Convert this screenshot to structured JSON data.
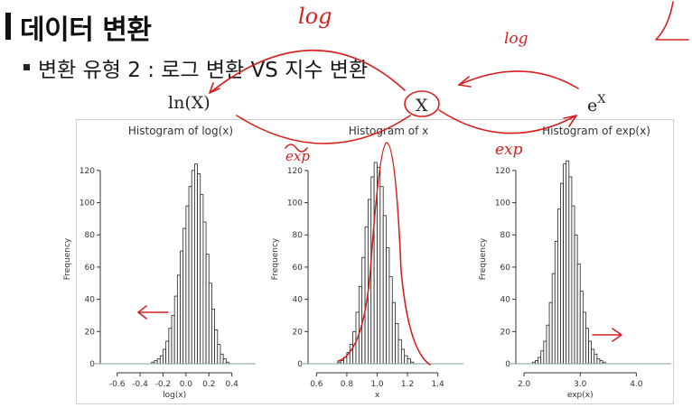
{
  "slide": {
    "title": "데이터 변환",
    "bullet": "변환 유형 2 : 로그 변환 VS 지수 변환"
  },
  "diagram": {
    "left_node": "ln(X)",
    "center_node": "X",
    "right_node_base": "e",
    "right_node_exp": "X"
  },
  "annotations": {
    "top_log": "log",
    "right_log": "log",
    "left_exp": "exp",
    "right_exp": "exp"
  },
  "colors": {
    "ink": "#d62020",
    "bars": "#222222",
    "panel_border": "#cfcfcf"
  },
  "chart_data": [
    {
      "type": "bar",
      "title": "Histogram of log(x)",
      "xlabel": "log(x)",
      "ylabel": "Frequency",
      "xlim": [
        -0.7,
        0.45
      ],
      "ylim": [
        0,
        130
      ],
      "xticks": [
        "-0.6",
        "-0.4",
        "-0.2",
        "0.0",
        "0.2",
        "0.4"
      ],
      "yticks": [
        "0",
        "20",
        "40",
        "60",
        "80",
        "100",
        "120"
      ],
      "bin_start": -0.3,
      "bin_width": 0.025,
      "values": [
        1,
        2,
        3,
        5,
        9,
        14,
        22,
        30,
        42,
        55,
        70,
        84,
        98,
        110,
        120,
        124,
        118,
        105,
        88,
        68,
        50,
        34,
        21,
        12,
        6,
        3,
        1
      ]
    },
    {
      "type": "bar",
      "title": "Histogram of x",
      "xlabel": "x",
      "ylabel": "Frequency",
      "xlim": [
        0.58,
        1.45
      ],
      "ylim": [
        0,
        130
      ],
      "xticks": [
        "0.6",
        "0.8",
        "1.0",
        "1.2",
        "1.4"
      ],
      "yticks": [
        "0",
        "20",
        "40",
        "60",
        "80",
        "100",
        "120"
      ],
      "bin_start": 0.74,
      "bin_width": 0.02,
      "values": [
        1,
        2,
        4,
        7,
        12,
        20,
        32,
        48,
        66,
        85,
        102,
        116,
        125,
        122,
        110,
        92,
        72,
        54,
        38,
        25,
        15,
        9,
        5,
        3,
        1
      ]
    },
    {
      "type": "bar",
      "title": "Histogram of exp(x)",
      "xlabel": "exp(x)",
      "ylabel": "Frequency",
      "xlim": [
        1.95,
        4.3
      ],
      "ylim": [
        0,
        130
      ],
      "xticks": [
        "2.0",
        "3.0",
        "4.0"
      ],
      "yticks": [
        "0",
        "20",
        "40",
        "60",
        "80",
        "100",
        "120"
      ],
      "bin_start": 2.15,
      "bin_width": 0.05,
      "values": [
        1,
        2,
        4,
        8,
        14,
        24,
        38,
        56,
        76,
        96,
        112,
        124,
        126,
        116,
        98,
        80,
        62,
        45,
        32,
        22,
        14,
        9,
        6,
        3,
        2,
        1
      ]
    }
  ]
}
